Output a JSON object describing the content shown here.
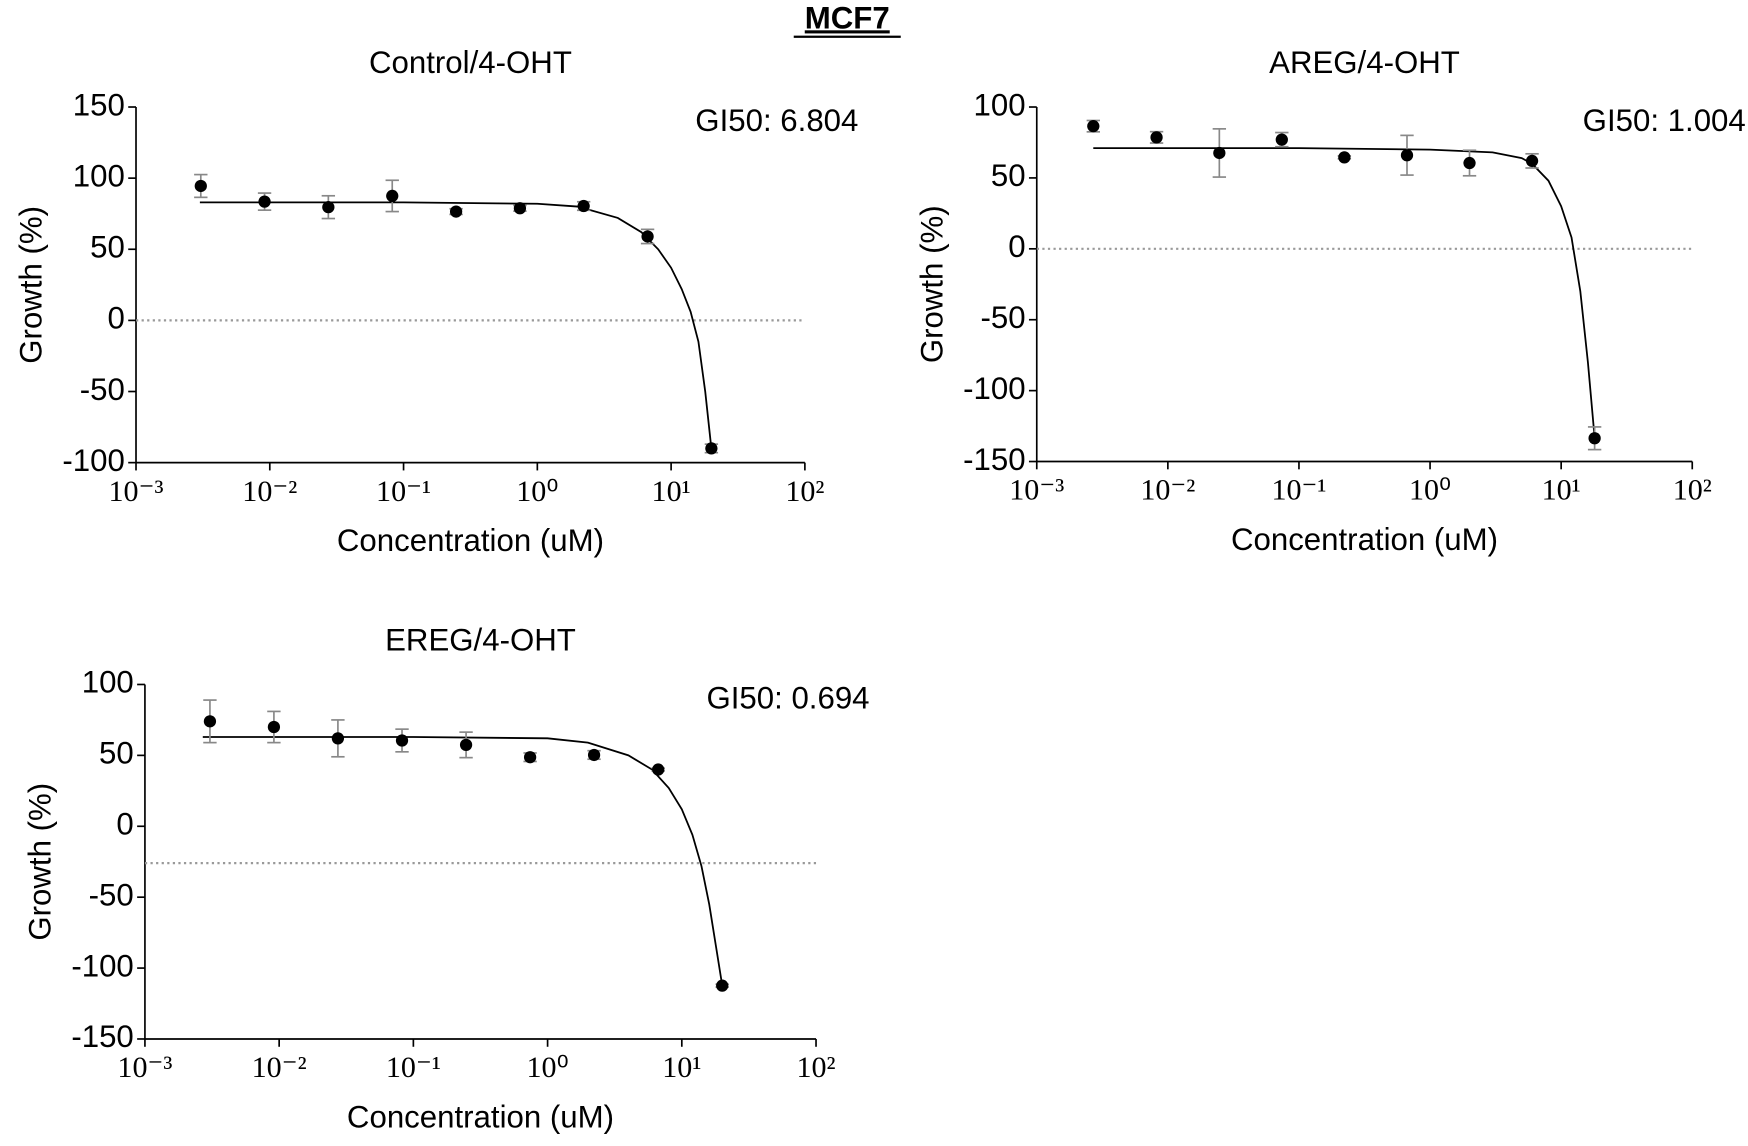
{
  "title": "MCF7",
  "chart_data": [
    {
      "type": "scatter",
      "title": "Control/4-OHT",
      "annotation": "GI50: 6.804",
      "xlabel": "Concentration (uM)",
      "ylabel": "Growth (%)",
      "xscale": "log",
      "xlim": [
        0.001,
        100
      ],
      "xticks": [
        {
          "value": 0.001,
          "label": "10⁻³"
        },
        {
          "value": 0.01,
          "label": "10⁻²"
        },
        {
          "value": 0.1,
          "label": "10⁻¹"
        },
        {
          "value": 1,
          "label": "10⁰"
        },
        {
          "value": 10,
          "label": "10¹"
        },
        {
          "value": 100,
          "label": "10²"
        }
      ],
      "ylim": [
        -100,
        150
      ],
      "yticks": [
        -100,
        -50,
        0,
        50,
        100,
        150
      ],
      "hline": 0,
      "color": "#000000",
      "grid": false,
      "points": {
        "x": [
          0.00305,
          0.00914,
          0.0274,
          0.0823,
          0.247,
          0.741,
          2.22,
          6.67,
          20
        ],
        "values": [
          94.5,
          83.5,
          79.6,
          87.5,
          76.5,
          78.8,
          80.4,
          59,
          -90
        ],
        "errors": [
          8,
          6,
          8,
          11,
          2,
          2,
          3,
          5,
          3
        ]
      },
      "fit": {
        "x": [
          0.003,
          0.1,
          1,
          2,
          4,
          6,
          8,
          10,
          12,
          14,
          16,
          18,
          20
        ],
        "values": [
          83,
          83,
          82,
          80,
          72,
          62,
          50,
          37,
          22,
          6,
          -15,
          -50,
          -90
        ]
      }
    },
    {
      "type": "scatter",
      "title": "AREG/4-OHT",
      "annotation": "GI50: 1.004",
      "xlabel": "Concentration (uM)",
      "ylabel": "Growth (%)",
      "xscale": "log",
      "xlim": [
        0.001,
        100
      ],
      "xticks": [
        {
          "value": 0.001,
          "label": "10⁻³"
        },
        {
          "value": 0.01,
          "label": "10⁻²"
        },
        {
          "value": 0.1,
          "label": "10⁻¹"
        },
        {
          "value": 1,
          "label": "10⁰"
        },
        {
          "value": 10,
          "label": "10¹"
        },
        {
          "value": 100,
          "label": "10²"
        }
      ],
      "ylim": [
        -150,
        100
      ],
      "yticks": [
        -150,
        -100,
        -50,
        0,
        50,
        100
      ],
      "hline": 0,
      "color": "#000000",
      "grid": false,
      "points": {
        "x": [
          0.0027,
          0.0082,
          0.0247,
          0.074,
          0.222,
          0.667,
          2,
          6,
          18
        ],
        "values": [
          86.5,
          78.6,
          67.6,
          77,
          64.5,
          66,
          60.5,
          62,
          -133.6
        ],
        "errors": [
          4,
          4,
          17,
          5,
          1,
          14,
          9,
          5,
          8
        ]
      },
      "fit": {
        "x": [
          0.0027,
          0.1,
          1,
          3,
          5,
          6,
          8,
          10,
          12,
          14,
          16,
          18
        ],
        "values": [
          71,
          71,
          70,
          68,
          64,
          60,
          48,
          30,
          8,
          -30,
          -80,
          -133
        ]
      }
    },
    {
      "type": "scatter",
      "title": "EREG/4-OHT",
      "annotation": "GI50: 0.694",
      "xlabel": "Concentration (uM)",
      "ylabel": "Growth (%)",
      "xscale": "log",
      "xlim": [
        0.001,
        100
      ],
      "xticks": [
        {
          "value": 0.001,
          "label": "10⁻³"
        },
        {
          "value": 0.01,
          "label": "10⁻²"
        },
        {
          "value": 0.1,
          "label": "10⁻¹"
        },
        {
          "value": 1,
          "label": "10⁰"
        },
        {
          "value": 10,
          "label": "10¹"
        },
        {
          "value": 100,
          "label": "10²"
        }
      ],
      "ylim": [
        -150,
        100
      ],
      "yticks": [
        -150,
        -100,
        -50,
        0,
        50,
        100
      ],
      "hline": -26,
      "color": "#000000",
      "grid": false,
      "points": {
        "x": [
          0.00305,
          0.00914,
          0.0274,
          0.0823,
          0.247,
          0.741,
          2.22,
          6.67,
          20
        ],
        "values": [
          74,
          70,
          62,
          60.5,
          57.4,
          48.7,
          50.3,
          40,
          -112.4
        ],
        "errors": [
          15,
          11,
          13,
          8,
          9,
          3,
          3,
          1,
          1
        ]
      },
      "fit": {
        "x": [
          0.0027,
          0.1,
          1,
          2,
          4,
          6,
          8,
          10,
          12,
          14,
          16,
          18,
          20
        ],
        "values": [
          63,
          63,
          62,
          59,
          50,
          40,
          27,
          12,
          -6,
          -28,
          -55,
          -85,
          -112
        ]
      }
    }
  ]
}
